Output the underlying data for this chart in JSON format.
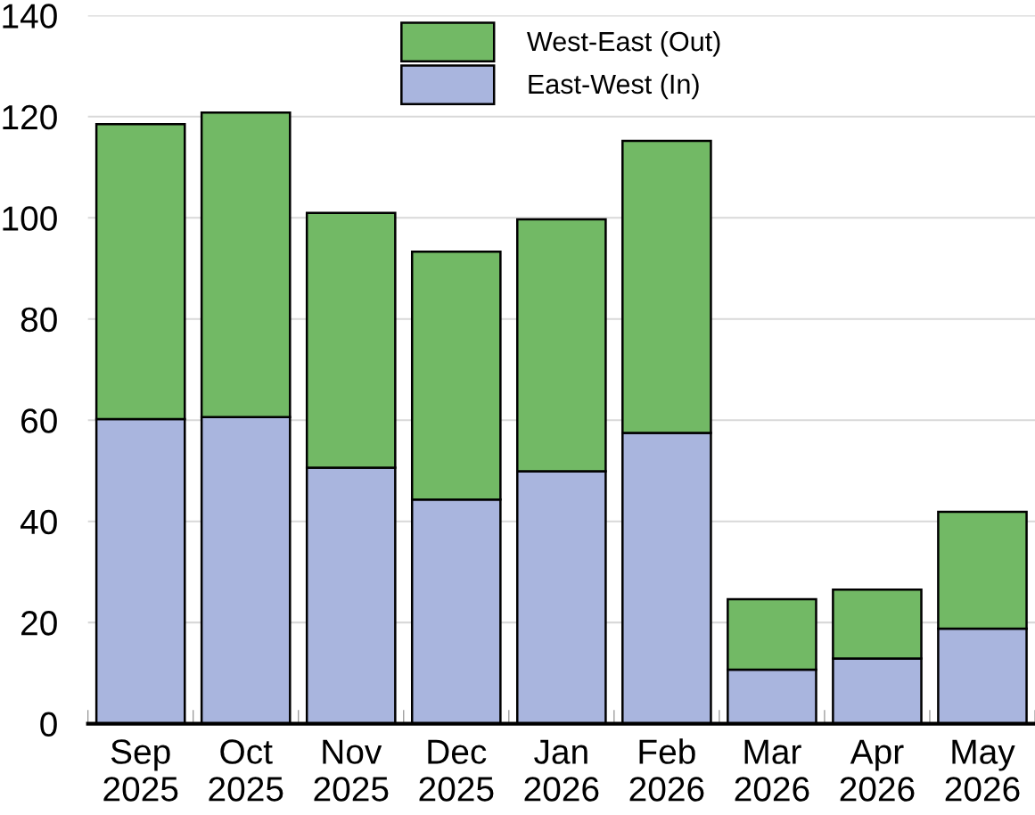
{
  "chart_data": {
    "type": "bar",
    "stacked": true,
    "categories": [
      "Sep\n2025",
      "Oct\n2025",
      "Nov\n2025",
      "Dec\n2025",
      "Jan\n2026",
      "Feb\n2026",
      "Mar\n2026",
      "Apr\n2026",
      "May\n2026"
    ],
    "series": [
      {
        "name": "East-West (In)",
        "color": "#a9b5de",
        "values": [
          60.2,
          60.6,
          50.6,
          44.3,
          49.9,
          57.5,
          10.7,
          12.9,
          18.8
        ]
      },
      {
        "name": "West-East (Out)",
        "color": "#72b965",
        "values": [
          58.3,
          60.2,
          50.4,
          49.0,
          49.8,
          57.7,
          13.9,
          13.6,
          23.1
        ]
      }
    ],
    "ylim": [
      0,
      140
    ],
    "yticks": [
      0,
      20,
      40,
      60,
      80,
      100,
      120,
      140
    ],
    "grid": "y",
    "legend": "top"
  }
}
